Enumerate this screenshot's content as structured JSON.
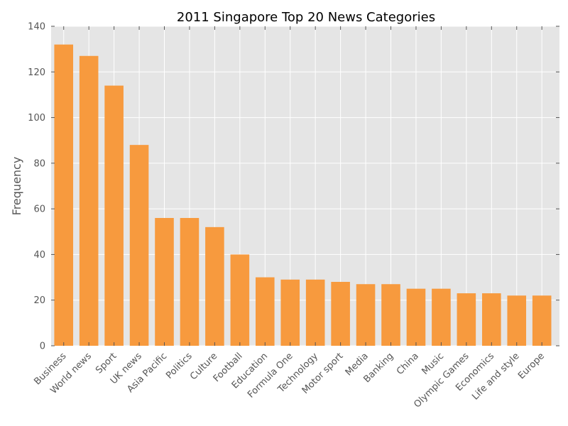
{
  "chart_data": {
    "type": "bar",
    "title": "2011 Singapore Top 20 News Categories",
    "xlabel": "",
    "ylabel": "Frequency",
    "categories": [
      "Business",
      "World news",
      "Sport",
      "UK news",
      "Asia Pacific",
      "Politics",
      "Culture",
      "Football",
      "Education",
      "Formula One",
      "Technology",
      "Motor sport",
      "Media",
      "Banking",
      "China",
      "Music",
      "Olympic Games",
      "Economics",
      "Life and style",
      "Europe"
    ],
    "values": [
      132,
      127,
      114,
      88,
      56,
      56,
      52,
      40,
      30,
      29,
      29,
      28,
      27,
      27,
      25,
      25,
      23,
      23,
      22,
      22
    ],
    "ylim": [
      0,
      140
    ],
    "yticks": [
      0,
      20,
      40,
      60,
      80,
      100,
      120,
      140
    ],
    "grid": true,
    "colors": {
      "bar": "#F79A3E",
      "plot_background": "#E5E5E5",
      "grid": "#FFFFFF",
      "text": "#555555"
    }
  }
}
